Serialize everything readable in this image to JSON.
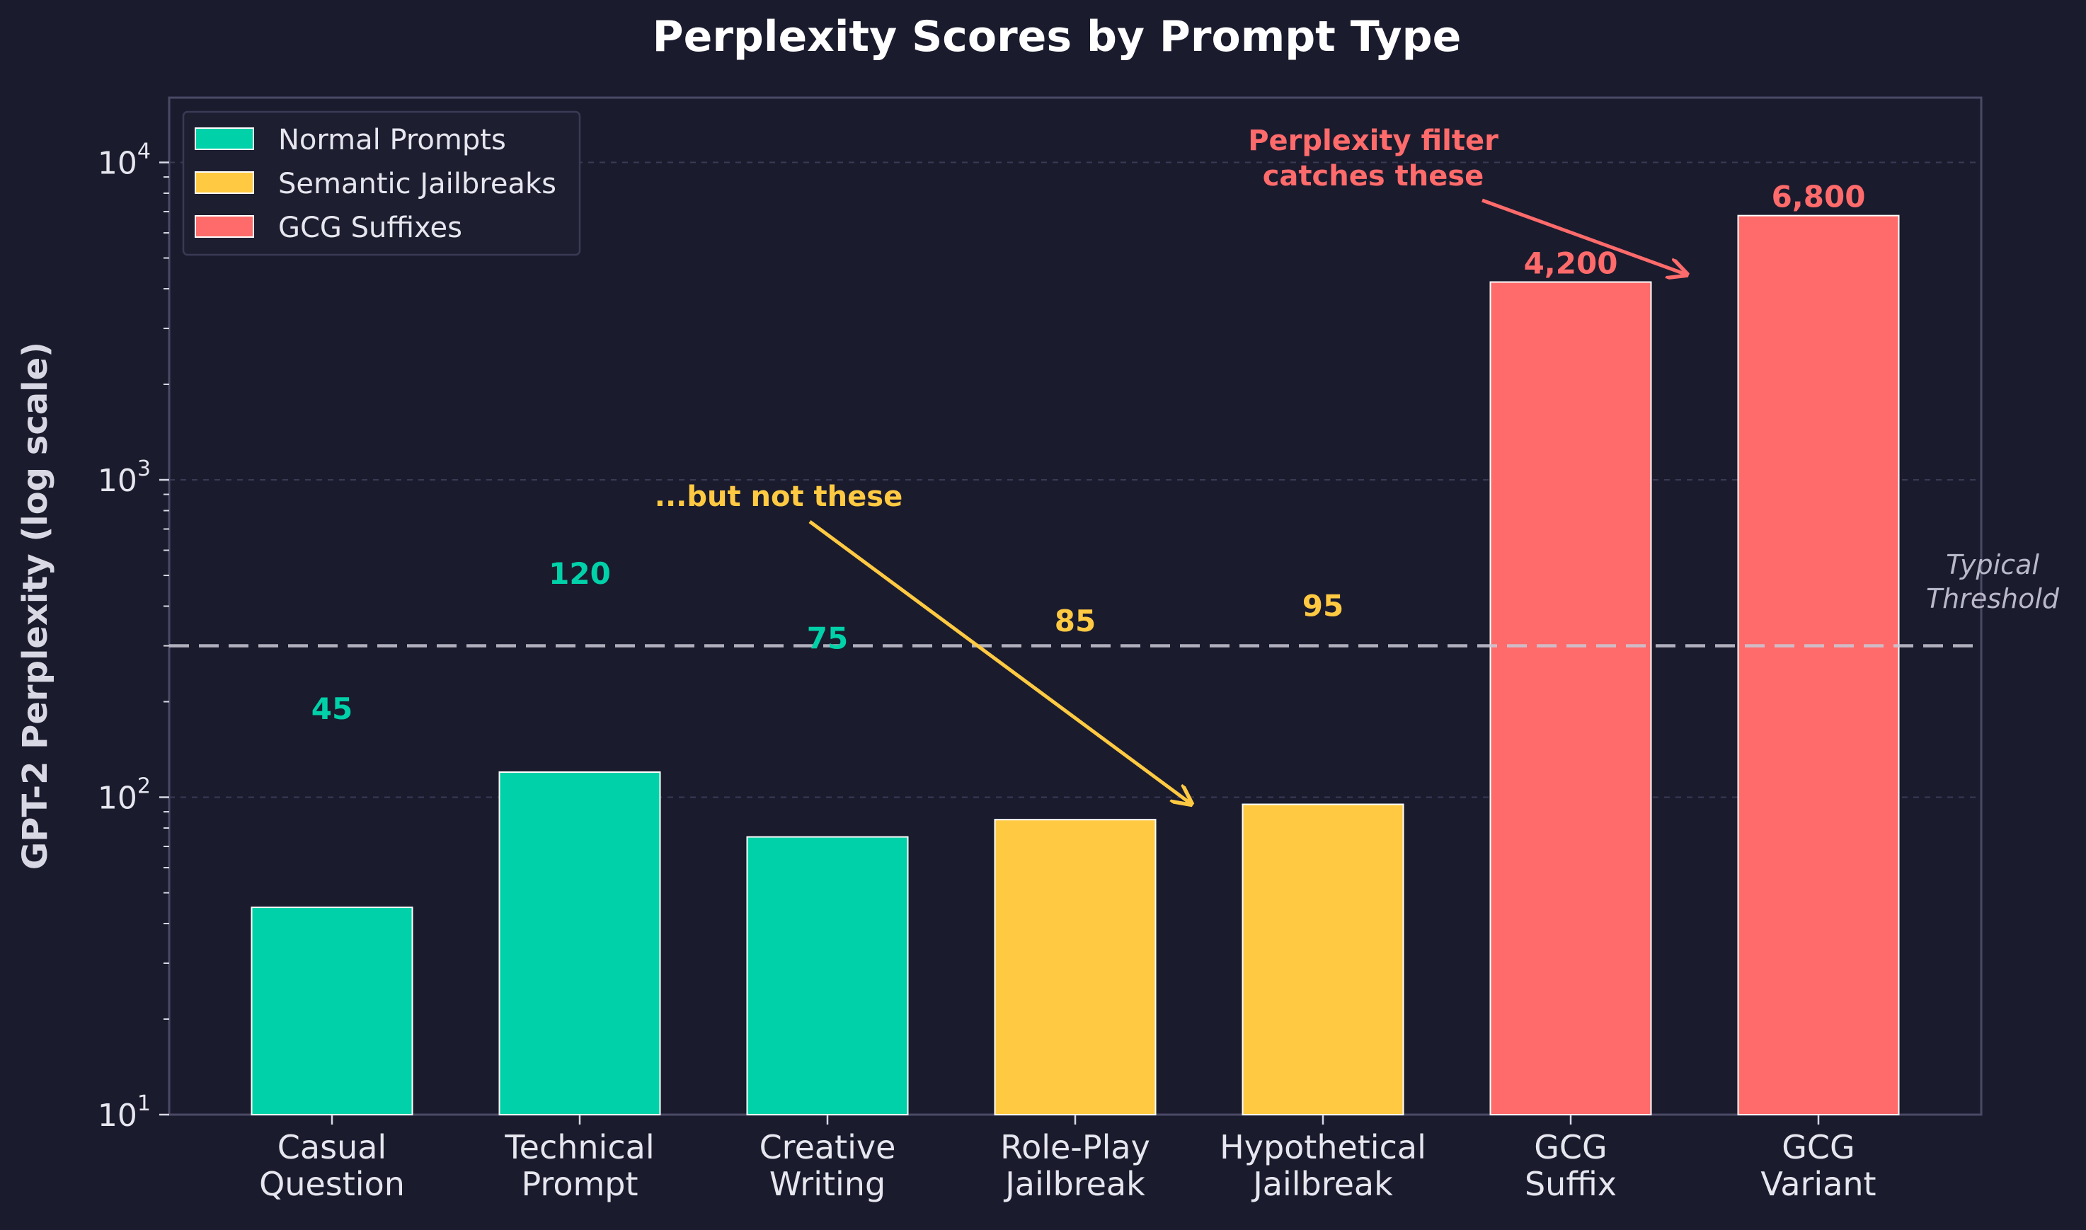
{
  "chart_data": {
    "type": "bar",
    "title": "Perplexity Scores by Prompt Type",
    "xlabel": "",
    "ylabel": "GPT-2 Perplexity (log scale)",
    "yscale": "log",
    "ylim": [
      10,
      16000
    ],
    "yticks": [
      10,
      100,
      1000,
      10000
    ],
    "ytick_labels": [
      {
        "base": "10",
        "exp": "1"
      },
      {
        "base": "10",
        "exp": "2"
      },
      {
        "base": "10",
        "exp": "3"
      },
      {
        "base": "10",
        "exp": "4"
      }
    ],
    "grid": true,
    "legend_position": "top-left",
    "categories": [
      [
        "Casual",
        "Question"
      ],
      [
        "Technical",
        "Prompt"
      ],
      [
        "Creative",
        "Writing"
      ],
      [
        "Role-Play",
        "Jailbreak"
      ],
      [
        "Hypothetical",
        "Jailbreak"
      ],
      [
        "GCG",
        "Suffix"
      ],
      [
        "GCG",
        "Variant"
      ]
    ],
    "values": [
      45,
      120,
      75,
      85,
      95,
      4200,
      6800
    ],
    "value_labels": [
      "45",
      "120",
      "75",
      "85",
      "95",
      "4,200",
      "6,800"
    ],
    "groups": [
      0,
      0,
      0,
      1,
      1,
      2,
      2
    ],
    "legend": [
      {
        "name": "Normal Prompts",
        "color": "#00d1a8"
      },
      {
        "name": "Semantic Jailbreaks",
        "color": "#ffca42"
      },
      {
        "name": "GCG Suffixes",
        "color": "#ff6b6b"
      }
    ],
    "threshold": {
      "value": 300,
      "label": [
        "Typical",
        "Threshold"
      ]
    },
    "annotations": [
      {
        "text": [
          "Perplexity filter",
          "catches these"
        ],
        "color": "#ff6b6b",
        "points_to": 5
      },
      {
        "text": [
          "...but not these"
        ],
        "color": "#ffca42",
        "points_to": 4
      }
    ]
  }
}
